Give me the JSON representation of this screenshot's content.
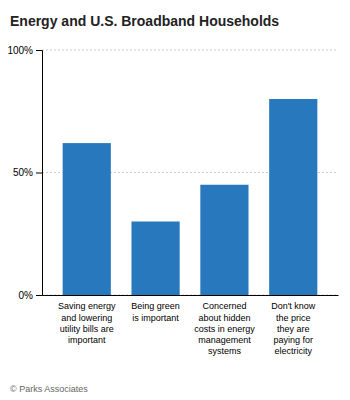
{
  "chart_data": {
    "type": "bar",
    "title": "Energy and U.S. Broadband Households",
    "categories": [
      "Saving energy\nand lowering\nutility bills are\nimportant",
      "Being green\nis important",
      "Concerned\nabout hidden\ncosts in energy\nmanagement\nsystems",
      "Don't know\nthe price\nthey are\npaying for\nelectricity"
    ],
    "values": [
      62,
      30,
      45,
      80
    ],
    "color": "#2878be",
    "ylim": [
      0,
      100
    ],
    "yticks": [
      {
        "value": 0,
        "label": "0%"
      },
      {
        "value": 50,
        "label": "50%"
      },
      {
        "value": 100,
        "label": "100%"
      }
    ],
    "grid": true,
    "annotations": [
      "© Parks Associates"
    ]
  }
}
